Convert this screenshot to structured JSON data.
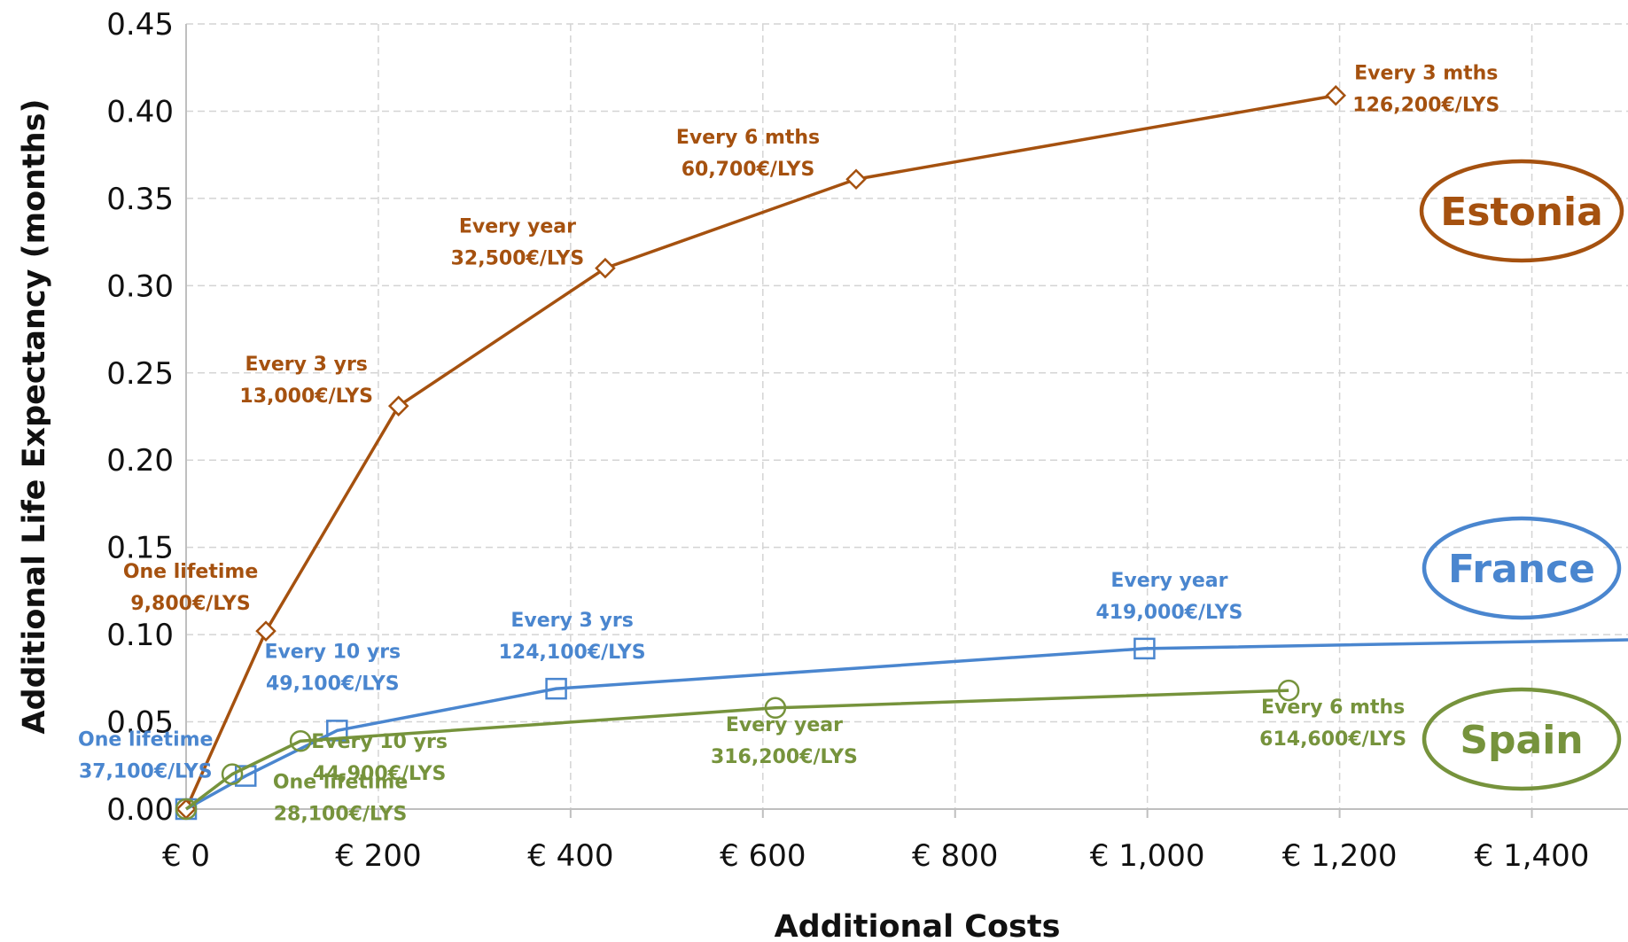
{
  "chart_data": {
    "type": "line",
    "xlabel": "Additional Costs",
    "ylabel": "Additional Life Expectancy (months)",
    "xlim": [
      0,
      1500
    ],
    "ylim": [
      0,
      0.45
    ],
    "x_ticks": [
      0,
      200,
      400,
      600,
      800,
      1000,
      1200,
      1400
    ],
    "x_tick_labels": [
      "€ 0",
      "€ 200",
      "€ 400",
      "€ 600",
      "€ 800",
      "€ 1,000",
      "€ 1,200",
      "€ 1,400"
    ],
    "y_ticks": [
      0,
      0.05,
      0.1,
      0.15,
      0.2,
      0.25,
      0.3,
      0.35,
      0.4,
      0.45
    ],
    "y_tick_labels": [
      "0.00",
      "0.05",
      "0.10",
      "0.15",
      "0.20",
      "0.25",
      "0.30",
      "0.35",
      "0.40",
      "0.45"
    ],
    "grid": true,
    "series": [
      {
        "name": "Estonia",
        "color": "#a5510f",
        "marker": "diamond",
        "x": [
          0,
          83,
          221,
          436,
          697,
          1196
        ],
        "y": [
          0,
          0.102,
          0.231,
          0.31,
          0.361,
          0.409
        ],
        "annotations": [
          {
            "x": 83,
            "y": 0.102,
            "line1": "One lifetime",
            "line2": "9,800€/LYS"
          },
          {
            "x": 221,
            "y": 0.231,
            "line1": "Every 3 yrs",
            "line2": "13,000€/LYS"
          },
          {
            "x": 436,
            "y": 0.31,
            "line1": "Every year",
            "line2": "32,500€/LYS"
          },
          {
            "x": 697,
            "y": 0.361,
            "line1": "Every 6 mths",
            "line2": "60,700€/LYS"
          },
          {
            "x": 1196,
            "y": 0.409,
            "line1": "Every 3 mths",
            "line2": "126,200€/LYS"
          }
        ]
      },
      {
        "name": "France",
        "color": "#4a86cf",
        "marker": "square",
        "x": [
          0,
          62,
          157,
          385,
          997,
          1500
        ],
        "y": [
          0,
          0.019,
          0.045,
          0.069,
          0.092,
          0.097
        ],
        "annotations": [
          {
            "x": 62,
            "y": 0.019,
            "line1": "One lifetime",
            "line2": "37,100€/LYS"
          },
          {
            "x": 157,
            "y": 0.045,
            "line1": "Every 10 yrs",
            "line2": "49,100€/LYS"
          },
          {
            "x": 385,
            "y": 0.069,
            "line1": "Every 3 yrs",
            "line2": "124,100€/LYS"
          },
          {
            "x": 997,
            "y": 0.092,
            "line1": "Every year",
            "line2": "419,000€/LYS"
          }
        ]
      },
      {
        "name": "Spain",
        "color": "#76933c",
        "marker": "circle",
        "x": [
          0,
          48,
          119,
          613,
          1147
        ],
        "y": [
          0,
          0.02,
          0.039,
          0.058,
          0.068
        ],
        "annotations": [
          {
            "x": 48,
            "y": 0.02,
            "line1": "One lifetime",
            "line2": "28,100€/LYS"
          },
          {
            "x": 119,
            "y": 0.039,
            "line1": "Every 10 yrs",
            "line2": "44,900€/LYS"
          },
          {
            "x": 613,
            "y": 0.058,
            "line1": "Every year",
            "line2": "316,200€/LYS"
          },
          {
            "x": 1147,
            "y": 0.068,
            "line1": "Every 6 mths",
            "line2": "614,600€/LYS"
          }
        ]
      }
    ]
  }
}
